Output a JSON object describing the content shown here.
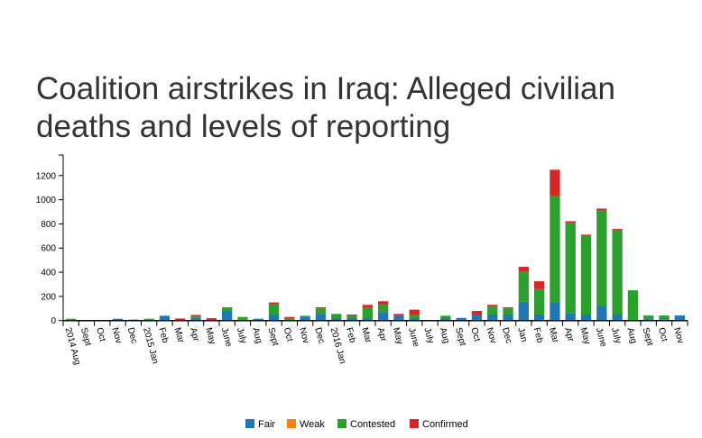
{
  "chart_data": {
    "type": "bar",
    "stacked": true,
    "title": "Coalition airstrikes in Iraq: Alleged civilian deaths and levels of reporting",
    "xlabel": "",
    "ylabel": "",
    "ylim": [
      0,
      1370
    ],
    "yticks": [
      0,
      200,
      400,
      600,
      800,
      1000,
      1200
    ],
    "legend_position": "bottom",
    "categories": [
      "2014 Aug",
      "Sept",
      "Oct",
      "Nov",
      "Dec",
      "2015 Jan",
      "Feb",
      "Mar",
      "Apr",
      "May",
      "June",
      "July",
      "Aug",
      "Sept",
      "Oct",
      "Nov",
      "Dec",
      "2016 Jan",
      "Feb",
      "Mar",
      "Apr",
      "May",
      "June",
      "July",
      "Aug",
      "Sept",
      "Oct",
      "Nov",
      "Dec",
      "Jan",
      "Feb",
      "Mar",
      "Apr",
      "May",
      "June",
      "July",
      "Aug",
      "Sept",
      "Oct",
      "Nov"
    ],
    "series": [
      {
        "name": "Fair",
        "color": "#1f77b4",
        "values": [
          3,
          0,
          0,
          15,
          8,
          0,
          40,
          0,
          22,
          5,
          80,
          0,
          15,
          50,
          0,
          30,
          55,
          20,
          20,
          20,
          70,
          40,
          20,
          0,
          20,
          22,
          50,
          50,
          50,
          155,
          50,
          150,
          60,
          50,
          124,
          50,
          0,
          12,
          12,
          42
        ]
      },
      {
        "name": "Weak",
        "color": "#ff7f0e",
        "values": [
          0,
          0,
          0,
          0,
          0,
          0,
          0,
          0,
          0,
          0,
          0,
          0,
          0,
          0,
          0,
          0,
          0,
          0,
          0,
          0,
          0,
          0,
          0,
          0,
          0,
          0,
          0,
          0,
          0,
          0,
          0,
          0,
          0,
          0,
          0,
          0,
          0,
          0,
          0,
          0
        ]
      },
      {
        "name": "Contested",
        "color": "#2ca02c",
        "values": [
          12,
          0,
          0,
          0,
          0,
          15,
          0,
          5,
          15,
          0,
          30,
          30,
          0,
          85,
          20,
          10,
          45,
          35,
          20,
          85,
          60,
          0,
          30,
          0,
          20,
          0,
          0,
          65,
          50,
          250,
          210,
          880,
          748,
          650,
          788,
          698,
          250,
          30,
          30,
          0
        ]
      },
      {
        "name": "Confirmed",
        "color": "#d62728",
        "values": [
          0,
          0,
          0,
          0,
          0,
          0,
          0,
          12,
          10,
          15,
          0,
          0,
          0,
          15,
          10,
          0,
          10,
          0,
          10,
          25,
          30,
          15,
          40,
          0,
          0,
          0,
          30,
          15,
          10,
          40,
          65,
          218,
          14,
          11,
          15,
          10,
          0,
          0,
          0,
          0
        ]
      }
    ]
  }
}
